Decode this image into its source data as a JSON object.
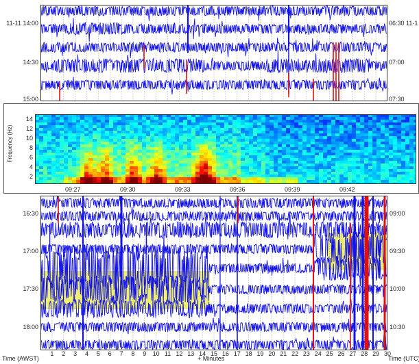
{
  "chart_data": [
    {
      "type": "heatmap",
      "kind": "helicorder",
      "panel": "top",
      "left_axis": {
        "labels": [
          "11-11 14:00",
          "14:30",
          "15:00"
        ]
      },
      "right_axis": {
        "labels": [
          "06:30 11-1",
          "07:00",
          "07:30"
        ]
      },
      "rows": 5,
      "grid": true,
      "trace_color": "#1414e6",
      "event_color": "#e01010"
    },
    {
      "type": "heatmap",
      "kind": "spectrogram",
      "panel": "middle",
      "ylabel": "Frequency (Hz)",
      "yticks": [
        2,
        4,
        6,
        8,
        10,
        12,
        14
      ],
      "ylim": [
        0.5,
        15
      ],
      "xticks": [
        "09:27",
        "09:30",
        "09:33",
        "09:36",
        "09:39",
        "09:42"
      ],
      "xlim_minutes": [
        0,
        20
      ],
      "colormap": "jet"
    },
    {
      "type": "heatmap",
      "kind": "helicorder",
      "panel": "bottom",
      "left_axis": {
        "labels": [
          "16:30",
          "17:00",
          "17:30",
          "18:00"
        ]
      },
      "right_axis": {
        "labels": [
          "09:00",
          "09:30",
          "10:00",
          "10:30"
        ]
      },
      "x_ticks": [
        1,
        2,
        3,
        4,
        5,
        6,
        7,
        8,
        9,
        10,
        11,
        12,
        13,
        14,
        15,
        16,
        17,
        18,
        19,
        20,
        21,
        22,
        23,
        24,
        25,
        26,
        27,
        28,
        29,
        30
      ],
      "xlabel": "+ Minutes",
      "left_title": "Time (AWST)",
      "right_title": "Time (UTC)",
      "rows": 8,
      "grid": true,
      "trace_color": "#1414e6",
      "event_color": "#e01010",
      "highlight_color": "#e8e840"
    }
  ]
}
